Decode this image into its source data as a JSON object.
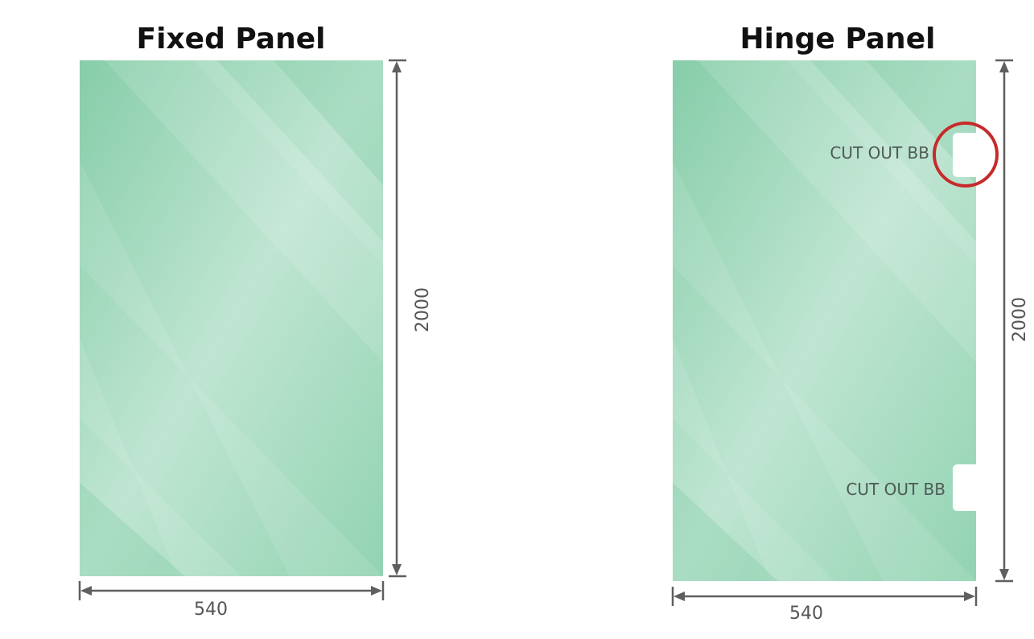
{
  "panels": [
    {
      "title": "Fixed Panel",
      "width_label": "540",
      "height_label": "2000"
    },
    {
      "title": "Hinge Panel",
      "width_label": "540",
      "height_label": "2000",
      "cutouts": [
        {
          "label": "CUT OUT BB",
          "highlighted": true
        },
        {
          "label": "CUT OUT BB",
          "highlighted": false
        }
      ]
    }
  ],
  "colors": {
    "glass": "#8ccfac",
    "glass_light": "#c2e6d4",
    "dimension": "#5f5f5f",
    "highlight": "#c62a2a"
  }
}
